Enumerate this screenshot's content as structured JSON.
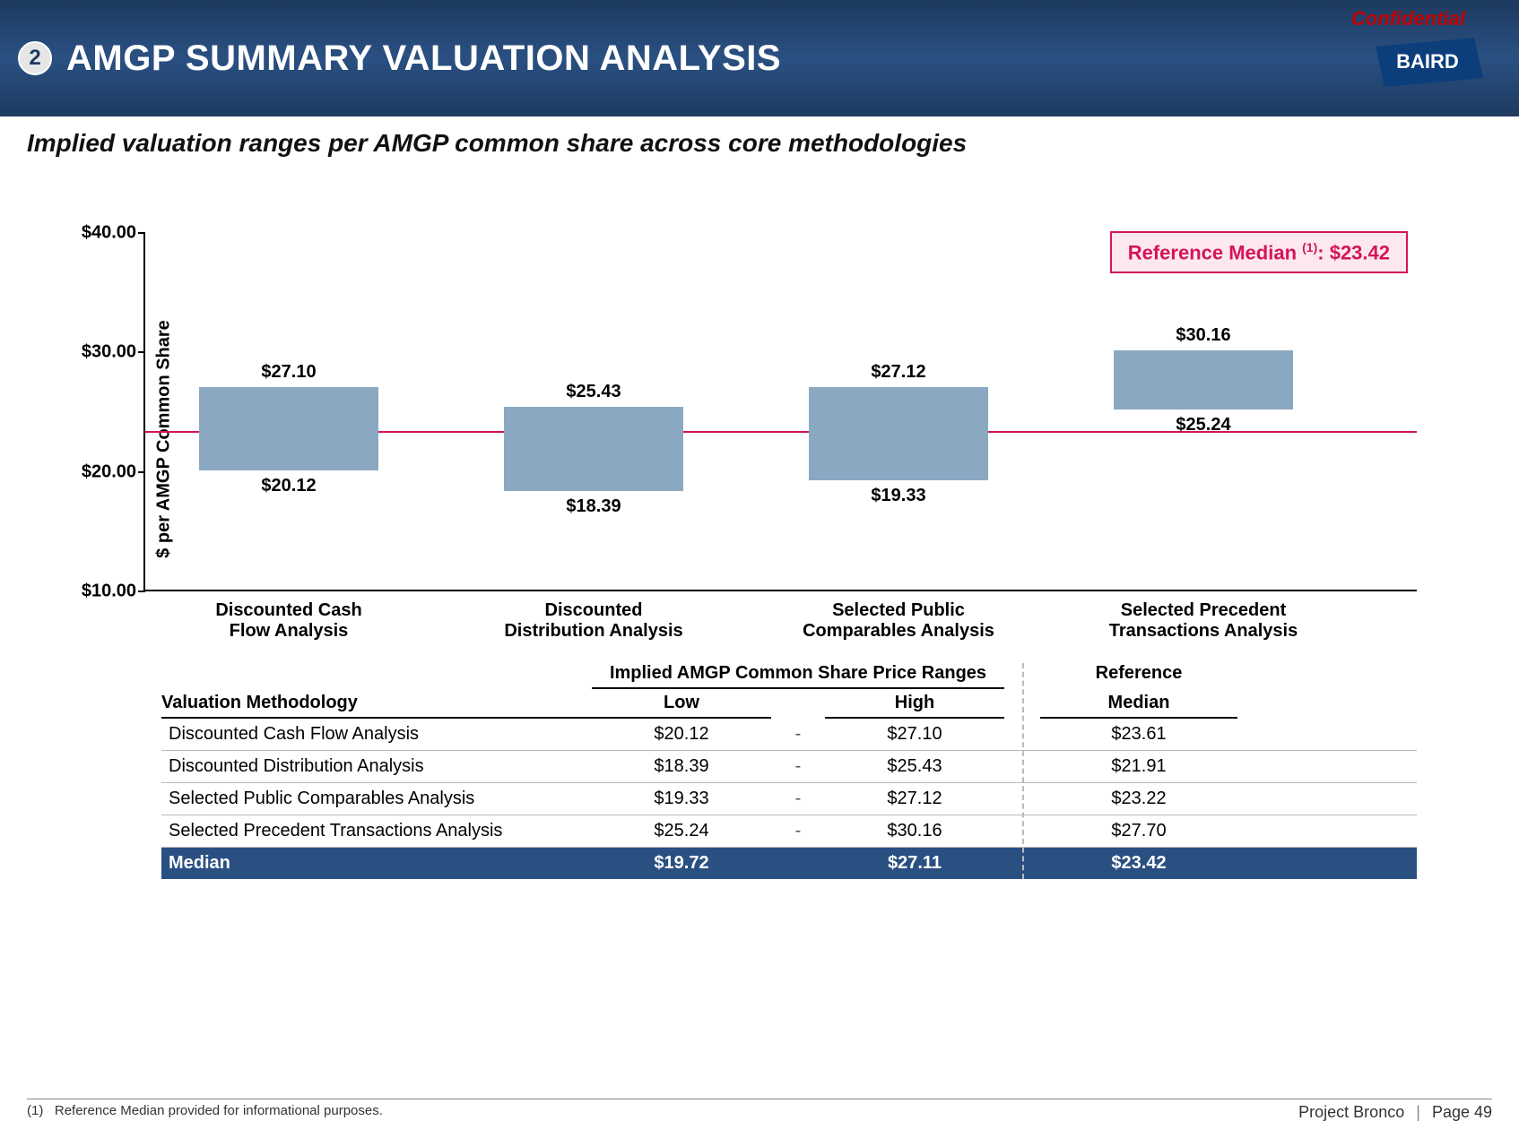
{
  "header": {
    "confidential": "Confidential",
    "section_number": "2",
    "title": "AMGP SUMMARY VALUATION ANALYSIS",
    "logo_text": "BAIRD"
  },
  "subtitle": "Implied valuation ranges per AMGP common share across core methodologies",
  "chart": {
    "type": "floating-bar",
    "y_axis_label": "$ per AMGP Common Share",
    "ymin": 10.0,
    "ymax": 40.0,
    "ytick_step": 10.0,
    "yticks": [
      "$40.00",
      "$30.00",
      "$20.00",
      "$10.00"
    ],
    "bar_color": "#8ba8c2",
    "reference_line_color": "#d4145a",
    "reference_line_value": 23.42,
    "reference_box_prefix": "Reference Median ",
    "reference_box_sup": "(1)",
    "reference_box_sep": ": ",
    "reference_box_value": "$23.42",
    "categories": [
      {
        "label_line1": "Discounted Cash",
        "label_line2": "Flow Analysis",
        "low": 20.12,
        "high": 27.1,
        "low_label": "$20.12",
        "high_label": "$27.10"
      },
      {
        "label_line1": "Discounted",
        "label_line2": "Distribution Analysis",
        "low": 18.39,
        "high": 25.43,
        "low_label": "$18.39",
        "high_label": "$25.43"
      },
      {
        "label_line1": "Selected Public",
        "label_line2": "Comparables Analysis",
        "low": 19.33,
        "high": 27.12,
        "low_label": "$19.33",
        "high_label": "$27.12"
      },
      {
        "label_line1": "Selected Precedent",
        "label_line2": "Transactions Analysis",
        "low": 25.24,
        "high": 30.16,
        "low_label": "$25.24",
        "high_label": "$30.16"
      }
    ],
    "background_color": "#ffffff"
  },
  "table": {
    "header_group": "Implied AMGP Common Share Price Ranges",
    "col_methodology": "Valuation Methodology",
    "col_low": "Low",
    "col_high": "High",
    "col_ref_line1": "Reference",
    "col_ref_line2": "Median",
    "rows": [
      {
        "methodology": "Discounted Cash Flow Analysis",
        "low": "$20.12",
        "high": "$27.10",
        "ref": "$23.61"
      },
      {
        "methodology": "Discounted Distribution Analysis",
        "low": "$18.39",
        "high": "$25.43",
        "ref": "$21.91"
      },
      {
        "methodology": "Selected Public Comparables Analysis",
        "low": "$19.33",
        "high": "$27.12",
        "ref": "$23.22"
      },
      {
        "methodology": "Selected Precedent Transactions Analysis",
        "low": "$25.24",
        "high": "$30.16",
        "ref": "$27.70"
      }
    ],
    "median_row": {
      "methodology": "Median",
      "low": "$19.72",
      "high": "$27.11",
      "ref": "$23.42"
    },
    "median_row_bg": "#2a5082",
    "median_row_fg": "#ffffff"
  },
  "footnote": {
    "marker": "(1)",
    "text": "Reference Median provided for informational purposes."
  },
  "footer": {
    "project": "Project Bronco",
    "page": "Page 49"
  }
}
